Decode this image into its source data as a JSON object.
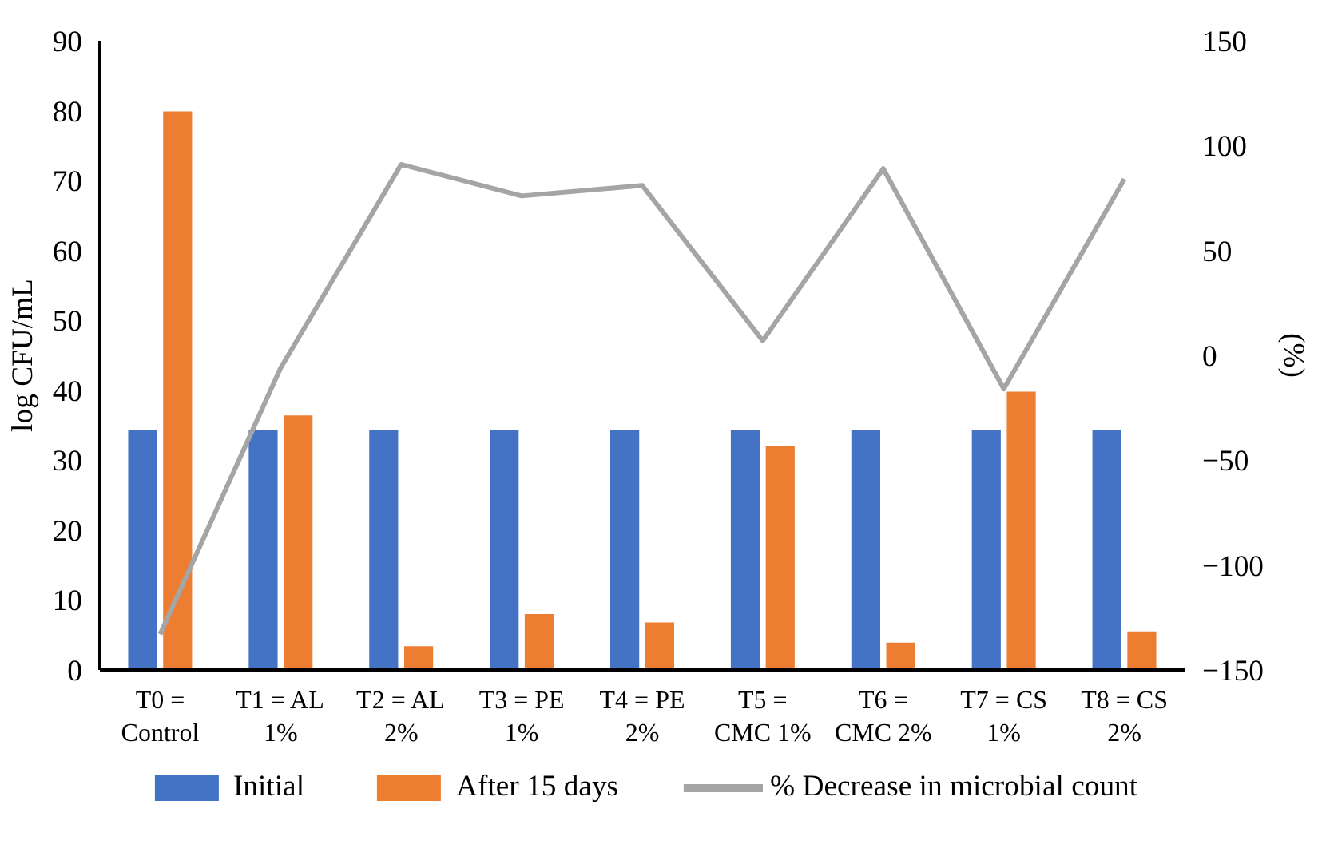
{
  "chart_data": {
    "type": "bar",
    "ylabel": "log CFU/mL",
    "y2label": "(%)",
    "categories": [
      "T0 = Control",
      "T1 = AL 1%",
      "T2 = AL 2%",
      "T3 = PE 1%",
      "T4 = PE 2%",
      "T5 = CMC 1%",
      "T6 = CMC 2%",
      "T7 = CS 1%",
      "T8 = CS 2%"
    ],
    "series": [
      {
        "name": "Initial",
        "color": "#4472c4",
        "values": [
          34.3,
          34.3,
          34.3,
          34.3,
          34.3,
          34.3,
          34.3,
          34.3,
          34.3
        ]
      },
      {
        "name": "After 15 days",
        "color": "#ed7d31",
        "values": [
          79.9,
          36.4,
          3.4,
          8,
          6.8,
          32,
          3.9,
          39.8,
          5.5
        ]
      },
      {
        "name": "% Decrease in microbial count",
        "type": "line",
        "axis": "y2",
        "color": "#a5a5a5",
        "values": [
          -133,
          -6,
          91,
          76,
          81,
          7,
          89,
          -16,
          84
        ]
      }
    ],
    "ylim": [
      0,
      90
    ],
    "yticks": [
      0,
      10,
      20,
      30,
      40,
      50,
      60,
      70,
      80,
      90
    ],
    "y2lim": [
      -150,
      150
    ],
    "y2ticks": [
      -150,
      -100,
      -50,
      0,
      50,
      100,
      150
    ],
    "grid": false,
    "legend": "bottom"
  }
}
